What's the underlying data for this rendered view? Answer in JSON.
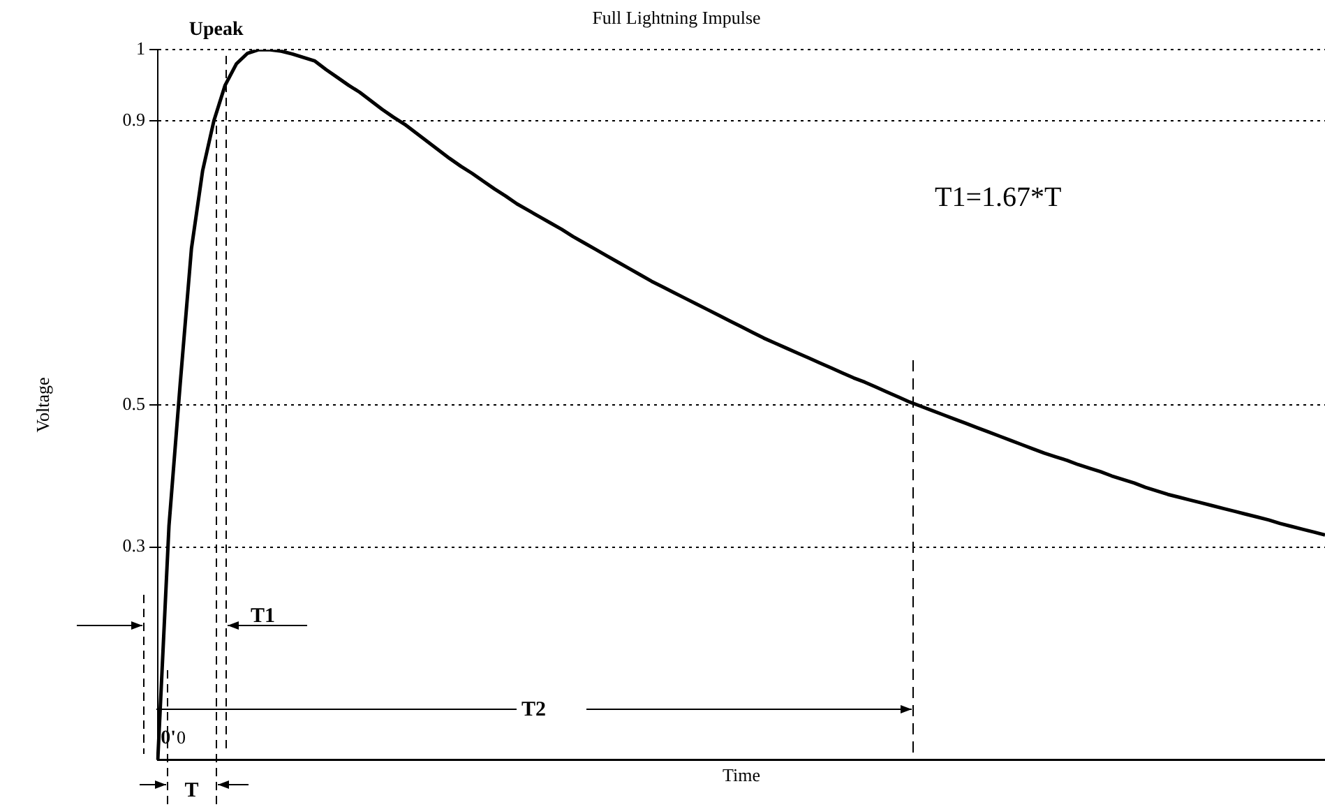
{
  "chart_data": {
    "type": "line",
    "title": "Full Lightning Impulse",
    "xlabel": "Time",
    "ylabel": "Voltage",
    "categories": [
      null,
      null,
      null,
      null,
      null,
      null,
      null,
      null,
      null,
      null,
      null,
      null,
      null,
      null,
      null,
      null,
      null,
      null,
      null,
      null,
      null,
      null,
      null,
      null,
      null,
      null,
      null,
      null,
      null,
      null,
      null,
      null,
      null,
      null,
      null,
      null,
      null,
      null,
      null,
      null,
      null,
      null,
      null,
      null,
      null,
      null,
      null,
      null,
      null,
      null,
      null,
      null,
      null,
      null,
      null,
      null,
      null,
      null,
      null,
      null,
      null,
      null,
      null,
      null,
      null,
      null,
      null,
      null,
      null,
      null,
      null,
      null,
      null,
      null,
      null,
      null,
      null,
      null,
      null,
      null,
      null,
      null,
      null,
      null,
      null,
      null,
      null,
      null,
      null,
      null,
      null,
      null,
      null,
      null,
      null,
      null,
      null,
      null,
      null,
      null,
      null,
      null,
      null,
      null,
      null
    ],
    "series": [
      {
        "color": "#000000",
        "values": [
          0.0,
          0.33,
          0.53,
          0.72,
          0.83,
          0.9,
          0.95,
          0.98,
          0.995,
          1.0,
          1.0,
          0.998,
          0.994,
          0.989,
          0.984,
          0.972,
          0.961,
          0.95,
          0.94,
          0.928,
          0.916,
          0.905,
          0.895,
          0.883,
          0.871,
          0.859,
          0.847,
          0.836,
          0.826,
          0.815,
          0.804,
          0.794,
          0.783,
          0.774,
          0.765,
          0.756,
          0.747,
          0.737,
          0.728,
          0.719,
          0.71,
          0.701,
          0.692,
          0.683,
          0.674,
          0.666,
          0.658,
          0.65,
          0.642,
          0.634,
          0.626,
          0.618,
          0.61,
          0.602,
          0.594,
          0.587,
          0.58,
          0.573,
          0.566,
          0.559,
          0.552,
          0.545,
          0.538,
          0.532,
          0.525,
          0.518,
          0.511,
          0.504,
          0.498,
          0.492,
          0.486,
          0.48,
          0.474,
          0.468,
          0.462,
          0.456,
          0.45,
          0.444,
          0.438,
          0.432,
          0.427,
          0.422,
          0.416,
          0.411,
          0.406,
          0.4,
          0.395,
          0.39,
          0.384,
          0.379,
          0.374,
          0.37,
          0.366,
          0.362,
          0.358,
          0.354,
          0.35,
          0.346,
          0.342,
          0.338,
          0.333,
          0.329,
          0.325,
          0.321,
          0.317
        ]
      }
    ],
    "ylim": [
      0,
      1
    ],
    "yticks": [
      0.3,
      0.5,
      0.9,
      1
    ],
    "grid": "y",
    "tick_labels": "y",
    "marker": "none",
    "line_style": "solid",
    "annotations": [
      "Upeak",
      "T1=1.67*T",
      "T1",
      "T2",
      "T",
      "0'",
      "0"
    ]
  }
}
